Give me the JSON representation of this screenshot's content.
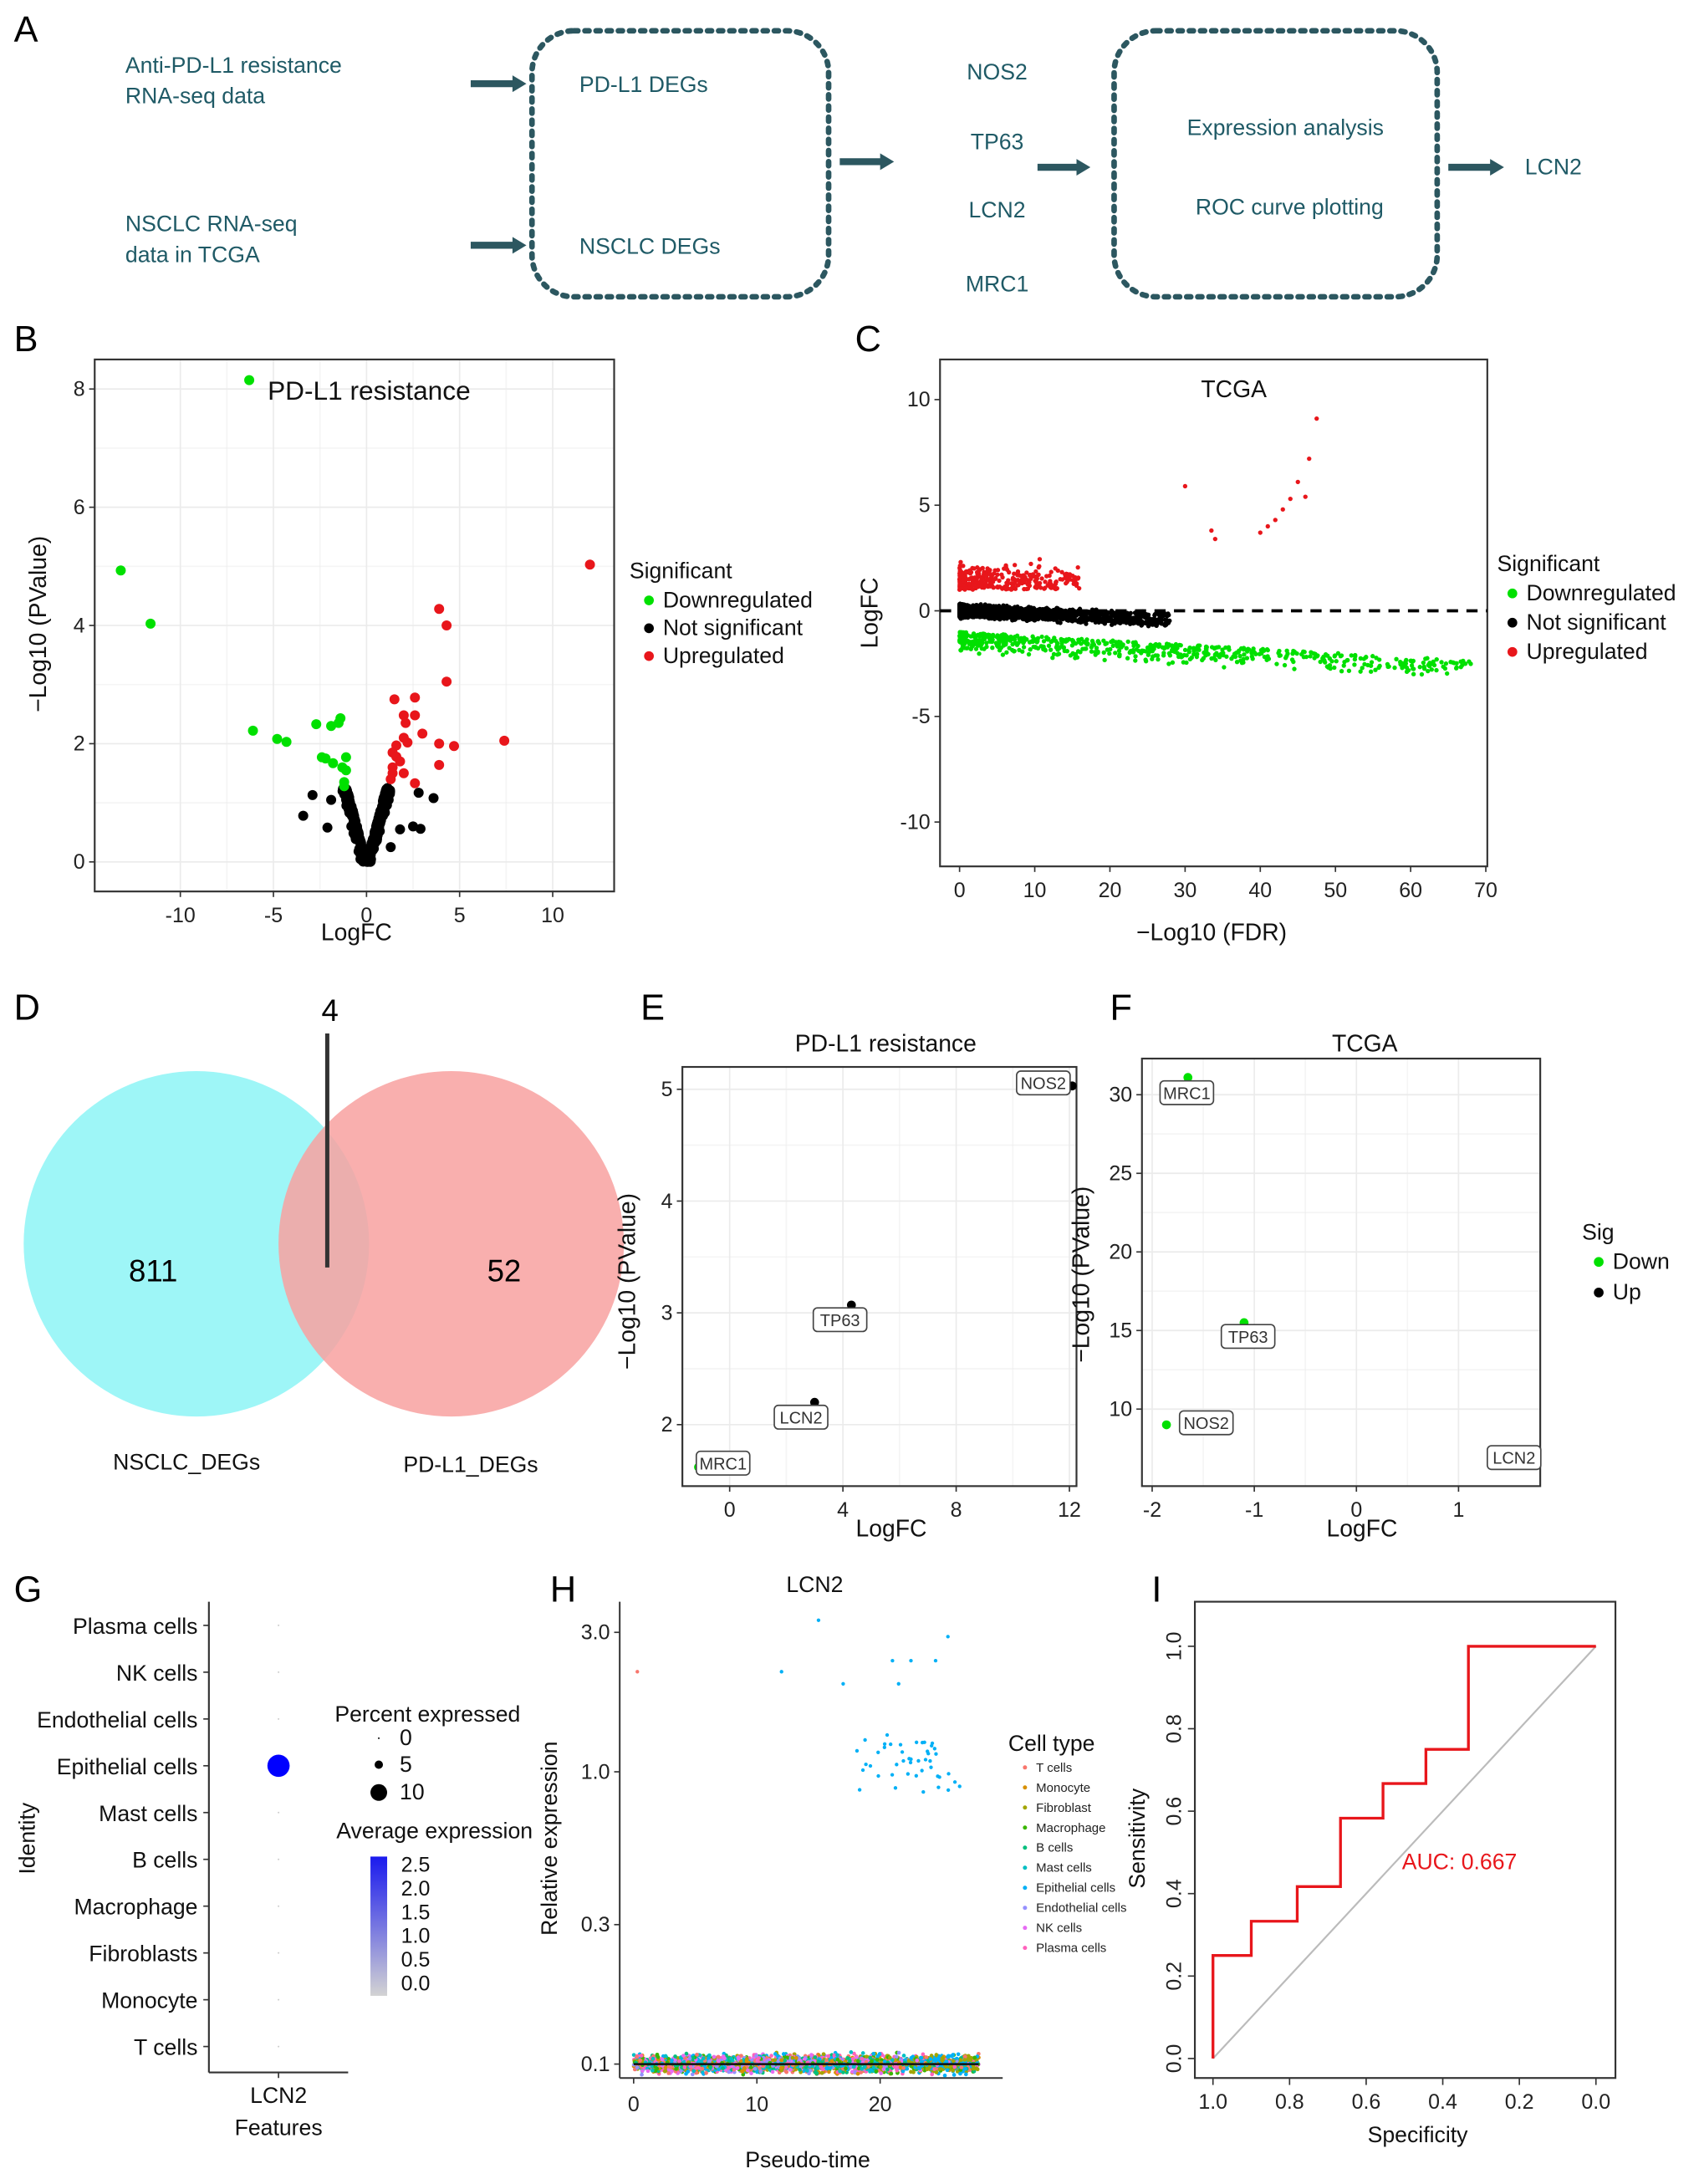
{
  "panel_labels": [
    "A",
    "B",
    "C",
    "D",
    "E",
    "F",
    "G",
    "H",
    "I"
  ],
  "flowchart": {
    "input_1": [
      "Anti-PD-L1 resistance",
      "RNA-seq data"
    ],
    "input_2": [
      "NSCLC RNA-seq",
      "data in TCGA"
    ],
    "box_1": [
      "PD-L1 DEGs",
      "NSCLC DEGs"
    ],
    "genes": [
      "NOS2",
      "TP63",
      "LCN2",
      "MRC1"
    ],
    "box_2": [
      "Expression analysis",
      "ROC curve plotting"
    ],
    "result": "LCN2",
    "text_color": "#1f5a66",
    "box_color": "#2c5760"
  },
  "chart_data": [
    {
      "panel": "B",
      "type": "scatter",
      "title": "PD-L1 resistance",
      "xlabel": "LogFC",
      "ylabel": "−Log10 (PValue)",
      "xlim": [
        -14.6,
        13.3
      ],
      "ylim": [
        -0.5,
        8.5
      ],
      "xticks": [
        -10,
        -5,
        0,
        5,
        10
      ],
      "yticks": [
        0,
        2,
        4,
        6,
        8
      ],
      "grid": true,
      "legend": {
        "title": "Significant",
        "placement": "right",
        "entries": [
          "Downregulated",
          "Not significant",
          "Upregulated"
        ],
        "colors": [
          "#00e000",
          "#000000",
          "#e8161b"
        ]
      },
      "downregulated": [
        [
          -13.2,
          4.93
        ],
        [
          -11.6,
          4.03
        ],
        [
          -6.3,
          8.15
        ],
        [
          -6.1,
          2.22
        ],
        [
          -4.8,
          2.08
        ],
        [
          -4.3,
          2.03
        ],
        [
          -2.7,
          2.33
        ],
        [
          -1.9,
          2.3
        ],
        [
          -1.5,
          2.35
        ],
        [
          -1.4,
          2.43
        ],
        [
          -2.4,
          1.77
        ],
        [
          -2.2,
          1.75
        ],
        [
          -1.8,
          1.67
        ],
        [
          -1.1,
          1.77
        ],
        [
          -1.3,
          1.6
        ],
        [
          -1.1,
          1.55
        ],
        [
          -1.2,
          1.35
        ],
        [
          -1.2,
          1.28
        ]
      ],
      "upregulated": [
        [
          12.0,
          5.03
        ],
        [
          3.9,
          4.28
        ],
        [
          4.3,
          4.0
        ],
        [
          4.3,
          3.05
        ],
        [
          1.5,
          2.75
        ],
        [
          2.6,
          2.78
        ],
        [
          2.0,
          2.48
        ],
        [
          2.6,
          2.48
        ],
        [
          2.1,
          2.35
        ],
        [
          3.0,
          2.17
        ],
        [
          2.0,
          2.1
        ],
        [
          2.2,
          2.02
        ],
        [
          3.9,
          2.0
        ],
        [
          4.7,
          1.96
        ],
        [
          7.4,
          2.05
        ],
        [
          1.6,
          1.97
        ],
        [
          1.4,
          1.85
        ],
        [
          1.6,
          1.78
        ],
        [
          1.8,
          1.7
        ],
        [
          3.9,
          1.64
        ],
        [
          1.4,
          1.6
        ],
        [
          1.4,
          1.5
        ],
        [
          2.0,
          1.5
        ],
        [
          1.3,
          1.4
        ],
        [
          2.6,
          1.33
        ]
      ],
      "not_significant_outliers": [
        [
          -3.4,
          0.78
        ],
        [
          -2.9,
          1.13
        ],
        [
          -1.9,
          1.05
        ],
        [
          -2.1,
          0.58
        ],
        [
          2.8,
          1.17
        ],
        [
          3.6,
          1.08
        ],
        [
          1.3,
          0.25
        ],
        [
          2.5,
          0.6
        ],
        [
          2.9,
          0.56
        ],
        [
          1.8,
          0.55
        ]
      ]
    },
    {
      "panel": "C",
      "type": "scatter",
      "title": "TCGA",
      "xlabel": "−Log10 (FDR)",
      "ylabel": "LogFC",
      "xlim": [
        -2.6,
        70.2
      ],
      "ylim": [
        -12.1,
        11.9
      ],
      "xticks": [
        0,
        10,
        20,
        30,
        40,
        50,
        60,
        70
      ],
      "yticks": [
        -10,
        -5,
        0,
        5,
        10
      ],
      "grid": false,
      "reference_line_y": 0,
      "legend": {
        "title": "Significant",
        "placement": "right",
        "entries": [
          "Downregulated",
          "Not significant",
          "Upregulated"
        ],
        "colors": [
          "#00e000",
          "#000000",
          "#e8161b"
        ]
      },
      "upregulated_outliers": [
        [
          30,
          5.9
        ],
        [
          33.5,
          3.8
        ],
        [
          34,
          3.4
        ],
        [
          40,
          3.7
        ],
        [
          41,
          4.0
        ],
        [
          42,
          4.3
        ],
        [
          43,
          4.8
        ],
        [
          44,
          5.3
        ],
        [
          45,
          6.1
        ],
        [
          46,
          5.4
        ],
        [
          46.5,
          7.2
        ],
        [
          47.5,
          9.1
        ]
      ]
    },
    {
      "panel": "D",
      "type": "venn",
      "sets": [
        {
          "name": "NSCLC_DEGs",
          "count": 811,
          "color": "#9ef6f7"
        },
        {
          "name": "PD-L1_DEGs",
          "count": 52,
          "color": "#f8a1a0"
        }
      ],
      "intersection": 4
    },
    {
      "panel": "E",
      "type": "scatter",
      "title": "PD-L1 resistance",
      "xlabel": "LogFC",
      "ylabel": "−Log10 (PValue)",
      "xlim": [
        -1.67,
        12.25
      ],
      "ylim": [
        1.45,
        5.2
      ],
      "xticks": [
        0,
        4,
        8,
        12
      ],
      "yticks": [
        2,
        3,
        4,
        5
      ],
      "grid": true,
      "points": [
        {
          "label": "NOS2",
          "x": 12.1,
          "y": 5.03,
          "sig": "Up"
        },
        {
          "label": "TP63",
          "x": 4.3,
          "y": 3.07,
          "sig": "Up"
        },
        {
          "label": "LCN2",
          "x": 3.0,
          "y": 2.2,
          "sig": "Up"
        },
        {
          "label": "MRC1",
          "x": -1.1,
          "y": 1.62,
          "sig": "Down"
        }
      ]
    },
    {
      "panel": "F",
      "type": "scatter",
      "title": "TCGA",
      "xlabel": "LogFC",
      "ylabel": "−Log10 (PValue)",
      "xlim": [
        -2.1,
        1.8
      ],
      "ylim": [
        5.1,
        32.3
      ],
      "xticks": [
        -2,
        -1,
        0,
        1
      ],
      "yticks": [
        10,
        15,
        20,
        25,
        30
      ],
      "grid": true,
      "legend": {
        "title": "Sig",
        "placement": "right",
        "entries": [
          "Down",
          "Up"
        ],
        "colors": [
          "#00e000",
          "#000000"
        ]
      },
      "points": [
        {
          "label": "MRC1",
          "x": -1.65,
          "y": 31.1,
          "sig": "Down"
        },
        {
          "label": "TP63",
          "x": -1.1,
          "y": 15.5,
          "sig": "Down"
        },
        {
          "label": "NOS2",
          "x": -1.86,
          "y": 9.0,
          "sig": "Down"
        },
        {
          "label": "LCN2",
          "x": 1.62,
          "y": 6.7,
          "sig": "Up"
        }
      ]
    },
    {
      "panel": "G",
      "type": "dotplot",
      "xlabel": "Features",
      "ylabel": "Identity",
      "feature": "LCN2",
      "categories": [
        "Plasma cells",
        "NK cells",
        "Endothelial cells",
        "Epithelial cells",
        "Mast cells",
        "B cells",
        "Macrophage",
        "Fibroblasts",
        "Monocyte",
        "T cells"
      ],
      "percent_expressed": [
        0,
        0,
        0,
        10,
        0,
        0,
        0,
        0,
        0,
        0
      ],
      "average_expression": [
        0,
        0,
        0,
        2.5,
        0,
        0,
        0,
        0,
        0,
        0
      ],
      "size_legend": {
        "title": "Percent expressed",
        "values": [
          0,
          5,
          10
        ]
      },
      "color_legend": {
        "title": "Average expression",
        "ticks": [
          "2.5",
          "2.0",
          "1.5",
          "1.0",
          "0.5",
          "0.0"
        ],
        "low_color": "#d3d3d3",
        "high_color": "#0000ff"
      }
    },
    {
      "panel": "H",
      "type": "scatter",
      "title": "LCN2",
      "xlabel": "Pseudo-time",
      "ylabel": "Relative expression",
      "xlim": [
        -1,
        29
      ],
      "y_scale": "log",
      "yticks": [
        "0.1",
        "0.3",
        "1.0",
        "3.0"
      ],
      "ytick_values": [
        0.1,
        0.3,
        1.0,
        3.0
      ],
      "xticks": [
        0,
        10,
        20
      ],
      "grid": false,
      "legend": {
        "title": "Cell type",
        "placement": "right",
        "entries": [
          "T cells",
          "Monocyte",
          "Fibroblast",
          "Macrophage",
          "B cells",
          "Mast cells",
          "Epithelial cells",
          "Endothelial cells",
          "NK cells",
          "Plasma cells"
        ],
        "colors": [
          "#f8766d",
          "#d89000",
          "#a3a500",
          "#39b600",
          "#00bf7d",
          "#00bfc4",
          "#00b0f6",
          "#9590ff",
          "#e76bf3",
          "#ff62bc"
        ]
      },
      "trend_line_y": 0.1
    },
    {
      "panel": "I",
      "type": "line",
      "xlabel": "Specificity",
      "ylabel": "Sensitivity",
      "xlim": [
        1.04,
        -0.05
      ],
      "ylim": [
        -0.05,
        1.1
      ],
      "xticks": [
        "1.0",
        "0.8",
        "0.6",
        "0.4",
        "0.2",
        "0.0"
      ],
      "yticks": [
        "0.0",
        "0.2",
        "0.4",
        "0.6",
        "0.8",
        "1.0"
      ],
      "roc": {
        "specificity": [
          1,
          1,
          0.9,
          0.9,
          0.78,
          0.78,
          0.667,
          0.667,
          0.556,
          0.556,
          0.444,
          0.444,
          0.333,
          0.333,
          0
        ],
        "sensitivity": [
          0,
          0.25,
          0.25,
          0.333,
          0.333,
          0.417,
          0.417,
          0.583,
          0.583,
          0.667,
          0.667,
          0.75,
          0.75,
          1,
          1
        ],
        "color": "#e8161b"
      },
      "annotation": "AUC: 0.667"
    }
  ]
}
